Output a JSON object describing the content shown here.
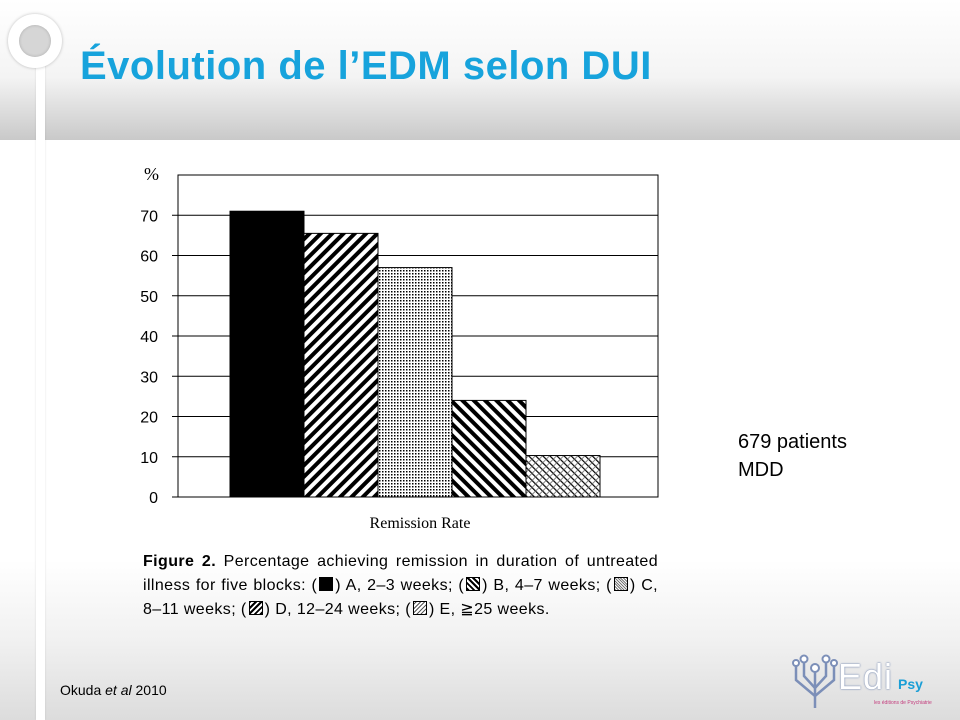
{
  "slide": {
    "title": "Évolution de l’EDM selon DUI",
    "side_note": [
      "679 patients",
      "MDD"
    ],
    "source_author": "Okuda ",
    "source_etal": "et al",
    "source_year": " 2010",
    "logo": {
      "main": "Edi",
      "sub": "Psy",
      "tagline": "les éditions de Psychiatrie"
    },
    "colors": {
      "title": "#17a3dc",
      "logo_accent": "#1a9ed6"
    }
  },
  "figure": {
    "caption_label": "Figure 2.",
    "caption_parts": [
      " Percentage achieving remission in duration of untreated illness for five blocks: (",
      ") A, 2–3 weeks; (",
      ") B, 4–7 weeks; (",
      ") C, 8–11 weeks; (",
      ") D, 12–24 weeks; (",
      ") E, ≧25 weeks."
    ]
  },
  "chart_data": {
    "type": "bar",
    "ylabel": "%",
    "xlabel": "Remission Rate",
    "ylim": [
      0,
      80
    ],
    "yticks": [
      0,
      10,
      20,
      30,
      40,
      50,
      60,
      70
    ],
    "grid": true,
    "categories": [
      "A",
      "B",
      "C",
      "D",
      "E"
    ],
    "values": [
      71,
      65.5,
      57,
      24,
      10.3
    ],
    "patterns": [
      "solid",
      "diag-down",
      "dots",
      "diag-up",
      "cross-light"
    ]
  }
}
